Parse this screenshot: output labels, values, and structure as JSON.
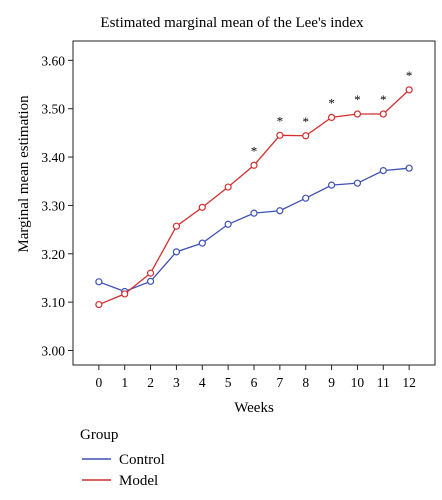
{
  "chart_data": {
    "type": "line",
    "title": "Estimated marginal mean of the Lee's index",
    "xlabel": "Weeks",
    "ylabel": "Marginal mean estimation",
    "x": [
      0,
      1,
      2,
      3,
      4,
      5,
      6,
      7,
      8,
      9,
      10,
      11,
      12
    ],
    "xlim": [
      -1,
      13
    ],
    "ylim": [
      2.97,
      3.64
    ],
    "yticks": [
      "3.00",
      "3.10",
      "3.20",
      "3.30",
      "3.40",
      "3.50",
      "3.60"
    ],
    "ytick_values": [
      3.0,
      3.1,
      3.2,
      3.3,
      3.4,
      3.5,
      3.6
    ],
    "series": [
      {
        "name": "Control",
        "color": "#3f51b5",
        "values": [
          3.142,
          3.122,
          3.143,
          3.204,
          3.222,
          3.261,
          3.284,
          3.289,
          3.315,
          3.342,
          3.346,
          3.372,
          3.377
        ]
      },
      {
        "name": "Model",
        "color": "#d32f2f",
        "values": [
          3.095,
          3.117,
          3.16,
          3.257,
          3.296,
          3.338,
          3.383,
          3.445,
          3.444,
          3.482,
          3.489,
          3.489,
          3.539
        ]
      }
    ],
    "significance_marks": {
      "symbol": "*",
      "weeks": [
        6,
        7,
        8,
        9,
        10,
        11,
        12
      ]
    },
    "legend": {
      "title": "Group",
      "placement": "bottom-left"
    },
    "grid": false
  }
}
